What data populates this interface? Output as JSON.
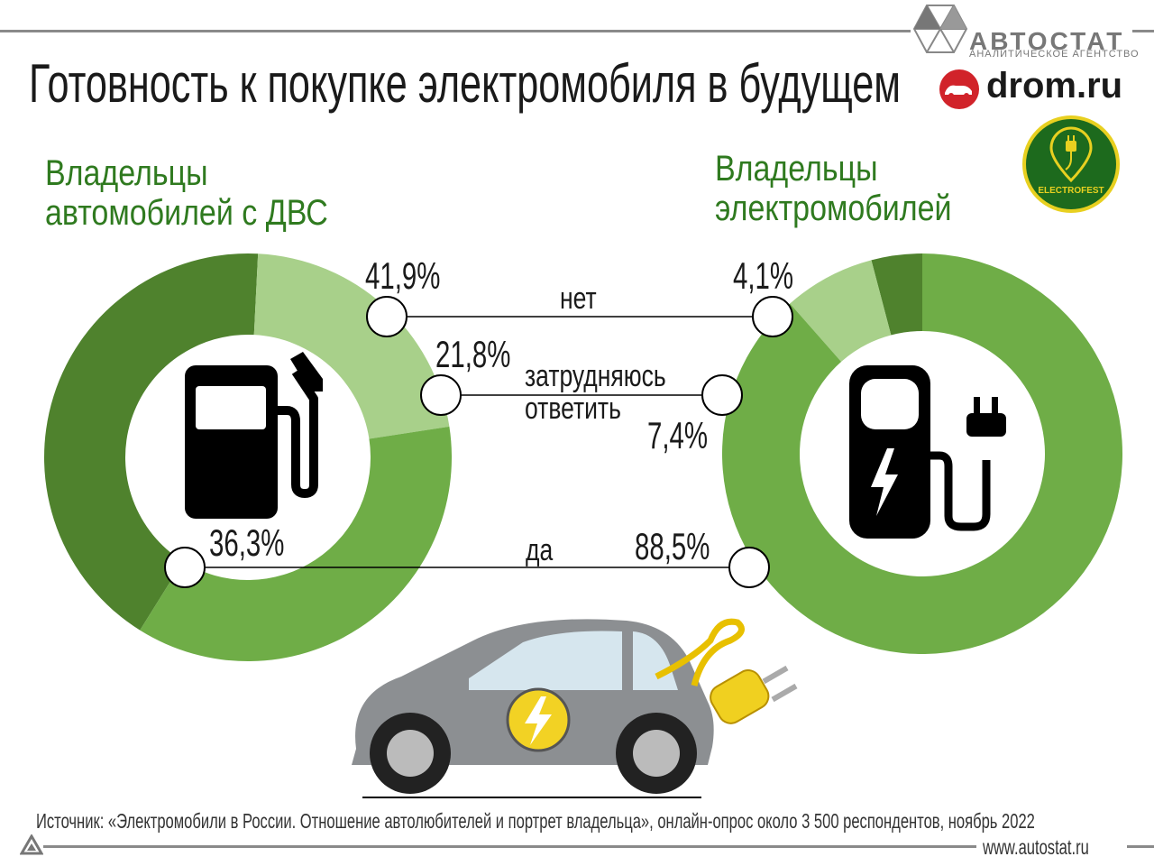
{
  "header": {
    "title": "Готовность к покупке электромобиля в будущем"
  },
  "logos": {
    "autostat_name": "АВТОСТАТ",
    "autostat_subtitle": "АНАЛИТИЧЕСКОЕ АГЕНТСТВО",
    "drom": "drom.ru",
    "electrofest": "ELECTROFEST"
  },
  "groups": {
    "ice_title_line1": "Владельцы",
    "ice_title_line2": "автомобилей с ДВС",
    "ev_title_line1": "Владельцы",
    "ev_title_line2": "электромобилей"
  },
  "categories": {
    "no": "нет",
    "hard_line1": "затрудняюсь",
    "hard_line2": "ответить",
    "yes": "да"
  },
  "labels": {
    "ice_no": "41,9%",
    "ice_hard": "21,8%",
    "ice_yes": "36,3%",
    "ev_no": "4,1%",
    "ev_hard": "7,4%",
    "ev_yes": "88,5%"
  },
  "colors": {
    "no": "#4f822d",
    "hard": "#a8d08a",
    "yes": "#6fad47",
    "title_green": "#2f7a1f"
  },
  "chart_data": [
    {
      "type": "pie",
      "donut": true,
      "title": "Владельцы автомобилей с ДВС",
      "categories": [
        "нет",
        "затрудняюсь ответить",
        "да"
      ],
      "values": [
        41.9,
        21.8,
        36.3
      ]
    },
    {
      "type": "pie",
      "donut": true,
      "title": "Владельцы электромобилей",
      "categories": [
        "нет",
        "затрудняюсь ответить",
        "да"
      ],
      "values": [
        4.1,
        7.4,
        88.5
      ]
    }
  ],
  "footer": {
    "source": "Источник: «Электромобили в России. Отношение автолюбителей и портрет владельца», онлайн-опрос около 3 500 респондентов, ноябрь 2022",
    "website": "www.autostat.ru"
  }
}
